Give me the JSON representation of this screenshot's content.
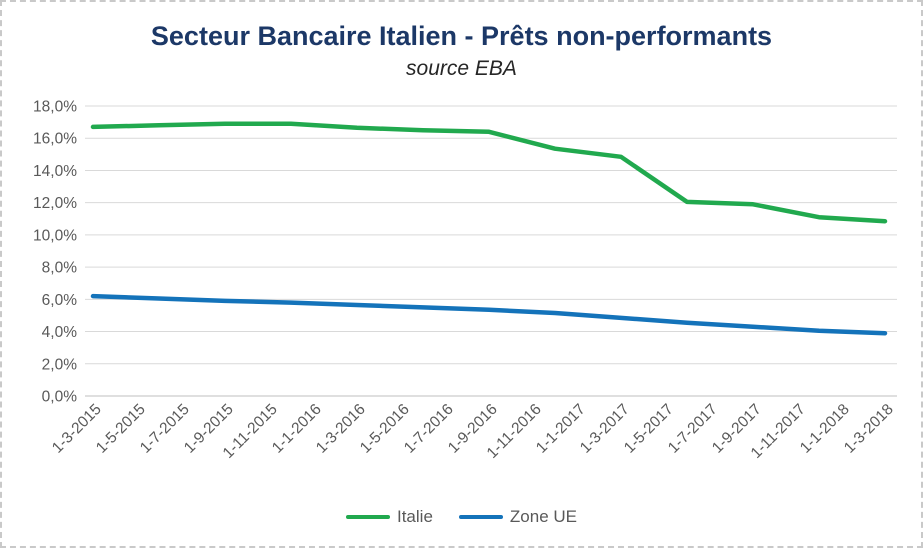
{
  "chart_data": {
    "type": "line",
    "title": "Secteur Bancaire Italien - Prêts non-performants",
    "subtitle": "source EBA",
    "x_tick_labels": [
      "1-3-2015",
      "1-5-2015",
      "1-7-2015",
      "1-9-2015",
      "1-11-2015",
      "1-1-2016",
      "1-3-2016",
      "1-5-2016",
      "1-7-2016",
      "1-9-2016",
      "1-11-2016",
      "1-1-2017",
      "1-3-2017",
      "1-5-2017",
      "1-7-2017",
      "1-9-2017",
      "1-11-2017",
      "1-1-2018",
      "1-3-2018"
    ],
    "x_tick_months": [
      0,
      2,
      4,
      6,
      8,
      10,
      12,
      14,
      16,
      18,
      20,
      22,
      24,
      26,
      28,
      30,
      32,
      34,
      36
    ],
    "y_tick_labels": [
      "0,0%",
      "2,0%",
      "4,0%",
      "6,0%",
      "8,0%",
      "10,0%",
      "12,0%",
      "14,0%",
      "16,0%",
      "18,0%"
    ],
    "ylim": [
      0,
      18
    ],
    "y_tick_step": 2,
    "grid": "horizontal",
    "legend_position": "bottom",
    "point_dates": [
      "1-3-2015",
      "1-6-2015",
      "1-9-2015",
      "1-12-2015",
      "1-3-2016",
      "1-6-2016",
      "1-9-2016",
      "1-12-2016",
      "1-3-2017",
      "1-6-2017",
      "1-9-2017",
      "1-12-2017",
      "1-3-2018"
    ],
    "point_months": [
      0,
      3,
      6,
      9,
      12,
      15,
      18,
      21,
      24,
      27,
      30,
      33,
      36
    ],
    "series": [
      {
        "name": "Italie",
        "color": "#21a94e",
        "values": [
          16.7,
          16.8,
          16.9,
          16.9,
          16.65,
          16.5,
          16.4,
          15.35,
          14.85,
          12.05,
          11.9,
          11.1,
          10.85
        ]
      },
      {
        "name": "Zone UE",
        "color": "#1473ba",
        "values": [
          6.2,
          6.05,
          5.9,
          5.8,
          5.65,
          5.5,
          5.35,
          5.15,
          4.85,
          4.55,
          4.3,
          4.05,
          3.9
        ]
      }
    ],
    "colors": {
      "title": "#1c3867",
      "axis_text": "#595959",
      "gridline": "#d9d9d9",
      "axis_line": "#bfbfbf"
    }
  }
}
